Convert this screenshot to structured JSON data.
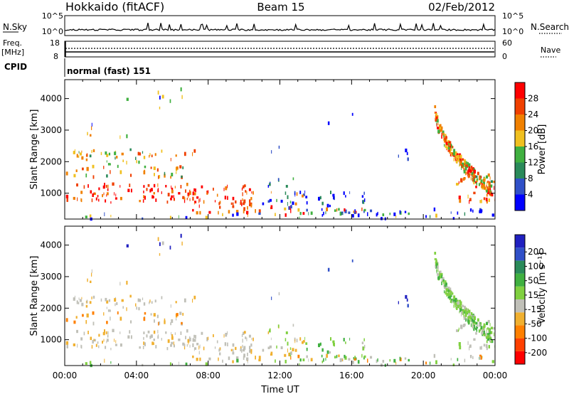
{
  "header": {
    "station": "Hokkaido (fitACF)",
    "beam": "Beam 15",
    "date": "02/Feb/2012"
  },
  "noise_panel": {
    "left_label": "N.Sky",
    "right_label": "N.Search",
    "tick_top": "10^5",
    "tick_bottom": "10^0"
  },
  "freq_panel": {
    "left_label_1": "Freq.",
    "left_label_2": "[MHz]",
    "right_label": "Nave",
    "left_ticks": [
      "18",
      "8"
    ],
    "right_ticks": [
      "60",
      "0"
    ]
  },
  "cpid_panel": {
    "label": "CPID",
    "mode": "normal (fast) 151"
  },
  "colors": {
    "power": [
      "#0000ff",
      "#3050c8",
      "#2a8a5a",
      "#40b040",
      "#f0c020",
      "#f08000",
      "#f04000",
      "#ff0000"
    ],
    "velocity": [
      "#ff0000",
      "#ff4000",
      "#ff8000",
      "#f0b030",
      "#c0c0b8",
      "#80d040",
      "#40b040",
      "#2a8a5a",
      "#3050c8",
      "#2020c0"
    ]
  },
  "chart_data": [
    {
      "type": "heatmap",
      "name": "power",
      "ylabel": "Slant Range [km]",
      "xlim": [
        "00:00",
        "00:00"
      ],
      "ylim": [
        180,
        4600
      ],
      "yticks": [
        1000,
        2000,
        3000,
        4000
      ],
      "colorbar_label": "Power [dB]",
      "colorbar_ticks": [
        "4",
        "8",
        "12",
        "16",
        "20",
        "24",
        "28"
      ]
    },
    {
      "type": "heatmap",
      "name": "velocity",
      "ylabel": "Slant Range [km]",
      "xlabel": "Time UT",
      "xticks": [
        "00:00",
        "04:00",
        "08:00",
        "12:00",
        "16:00",
        "20:00",
        "00:00"
      ],
      "ylim": [
        180,
        4600
      ],
      "yticks": [
        1000,
        2000,
        3000,
        4000
      ],
      "colorbar_label": "Velocity [m s⁻¹]",
      "colorbar_ticks": [
        "200",
        "100",
        "50",
        "15",
        "-15",
        "-50",
        "-100",
        "-200"
      ]
    }
  ]
}
